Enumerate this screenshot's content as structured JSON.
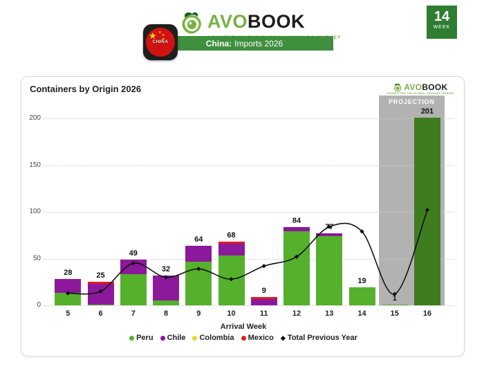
{
  "header": {
    "logo": {
      "avo": "AVO",
      "book": "BOOK",
      "tagline": "CONNECTING THE GLOBAL AVOCADO MARKET"
    },
    "banner": {
      "country": "China:",
      "rest": "Imports 2026"
    },
    "flag_label": "CHINA",
    "week_badge": {
      "number": "14",
      "label": "WEEK"
    }
  },
  "card": {
    "title": "Containers by Origin 2026",
    "mini_logo": {
      "avo": "AVO",
      "book": "BOOK",
      "tagline": "CONNECTING THE GLOBAL AVOCADO MARKET"
    }
  },
  "chart_data": {
    "type": "bar+line",
    "title": "Containers by Origin 2026",
    "xlabel": "Arrival Week",
    "categories": [
      5,
      6,
      7,
      8,
      9,
      10,
      11,
      12,
      13,
      14,
      15,
      16
    ],
    "series": [
      {
        "name": "Peru",
        "color": "#55b02b",
        "values": [
          13,
          1,
          33,
          5,
          47,
          53,
          0,
          79,
          74,
          19,
          1,
          201
        ]
      },
      {
        "name": "Chile",
        "color": "#8c189c",
        "values": [
          15,
          22,
          16,
          27,
          17,
          13,
          7,
          5,
          3,
          0,
          0,
          0
        ]
      },
      {
        "name": "Colombia",
        "color": "#f0d428",
        "values": [
          0,
          0,
          0,
          0,
          0,
          0,
          0,
          0,
          0,
          0,
          0,
          0
        ]
      },
      {
        "name": "Mexico",
        "color": "#db1f1f",
        "values": [
          0,
          2,
          0,
          0,
          0,
          2,
          2,
          0,
          0,
          0,
          0,
          0
        ]
      }
    ],
    "bar_totals": [
      28,
      25,
      49,
      32,
      64,
      68,
      9,
      84,
      77,
      19,
      1,
      201
    ],
    "line_series": {
      "name": "Total Previous Year",
      "color": "#111111",
      "values": [
        13,
        15,
        45,
        30,
        39,
        28,
        42,
        52,
        84,
        79,
        12,
        102
      ]
    },
    "ylim": [
      0,
      220
    ],
    "yticks": [
      0,
      50,
      100,
      150,
      200
    ],
    "grid": "dotted horizontal",
    "legend_position": "bottom",
    "projection": {
      "label": "PROJECTION",
      "weeks": [
        15,
        16
      ],
      "band_color": "#b2b2b2",
      "bar_color": "#3d7c1f"
    }
  }
}
